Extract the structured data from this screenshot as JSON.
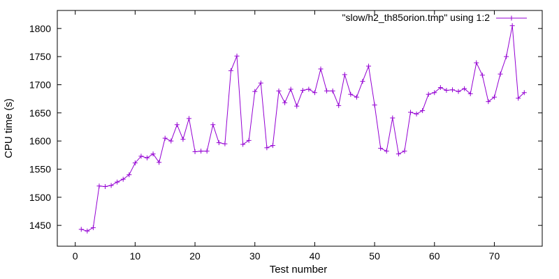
{
  "chart_data": {
    "type": "line",
    "title": "",
    "xlabel": "Test number",
    "ylabel": "CPU time (s)",
    "xlim": [
      -3,
      78
    ],
    "ylim": [
      1413,
      1832
    ],
    "x_ticks": [
      0,
      10,
      20,
      30,
      40,
      50,
      60,
      70
    ],
    "y_ticks": [
      1450,
      1500,
      1550,
      1600,
      1650,
      1700,
      1750,
      1800
    ],
    "grid": false,
    "legend": "top-right",
    "marker": "plus",
    "line_color": "#9400d3",
    "series": [
      {
        "name": "\"slow/h2_th85orion.tmp\" using 1:2",
        "x": [
          1,
          2,
          3,
          4,
          5,
          6,
          7,
          8,
          9,
          10,
          11,
          12,
          13,
          14,
          15,
          16,
          17,
          18,
          19,
          20,
          21,
          22,
          23,
          24,
          25,
          26,
          27,
          28,
          29,
          30,
          31,
          32,
          33,
          34,
          35,
          36,
          37,
          38,
          39,
          40,
          41,
          42,
          43,
          44,
          45,
          46,
          47,
          48,
          49,
          50,
          51,
          52,
          53,
          54,
          55,
          56,
          57,
          58,
          59,
          60,
          61,
          62,
          63,
          64,
          65,
          66,
          67,
          68,
          69,
          70,
          71,
          72,
          73,
          74,
          75
        ],
        "y": [
          1443,
          1440,
          1446,
          1520,
          1519,
          1521,
          1527,
          1532,
          1540,
          1561,
          1573,
          1570,
          1577,
          1562,
          1605,
          1600,
          1629,
          1603,
          1640,
          1581,
          1582,
          1582,
          1629,
          1597,
          1595,
          1725,
          1751,
          1594,
          1601,
          1688,
          1703,
          1588,
          1592,
          1689,
          1668,
          1692,
          1662,
          1690,
          1692,
          1686,
          1728,
          1689,
          1689,
          1663,
          1718,
          1683,
          1678,
          1706,
          1733,
          1664,
          1587,
          1582,
          1641,
          1577,
          1582,
          1651,
          1648,
          1654,
          1683,
          1686,
          1695,
          1690,
          1691,
          1688,
          1693,
          1684,
          1739,
          1717,
          1670,
          1678,
          1719,
          1750,
          1805,
          1676,
          1686
        ]
      }
    ]
  }
}
